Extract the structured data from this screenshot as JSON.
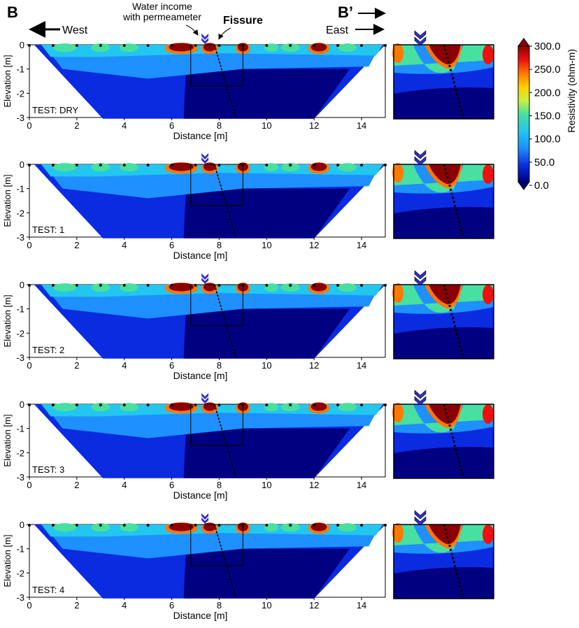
{
  "figure": {
    "section_start": "B",
    "section_end": "B’",
    "west_label": "West",
    "east_label": "East",
    "water_label_line1": "Water income",
    "water_label_line2": "with permeameter",
    "fissure_label": "Fissure"
  },
  "chart_data": {
    "type": "heatmap",
    "xlabel": "Distance [m]",
    "ylabel": "Elevation [m]",
    "xlim": [
      0,
      15
    ],
    "ylim": [
      -3,
      0
    ],
    "xticks": [
      "0",
      "2",
      "4",
      "6",
      "8",
      "10",
      "12",
      "14"
    ],
    "yticks": [
      "0",
      "-1",
      "-2",
      "-3"
    ],
    "panels": [
      {
        "test": "TEST: DRY"
      },
      {
        "test": "TEST: 1"
      },
      {
        "test": "TEST: 2"
      },
      {
        "test": "TEST: 3"
      },
      {
        "test": "TEST: 4"
      }
    ],
    "colorbar": {
      "label": "Resistivity (ohm-m)",
      "ticks": [
        "300.0",
        "250.0",
        "200.0",
        "150.0",
        "100.0",
        "50.0",
        "0.0"
      ],
      "colors": [
        "#000080",
        "#0a2be0",
        "#1e90ff",
        "#22c6ee",
        "#48e0a0",
        "#c8f040",
        "#ffd000",
        "#ff7800",
        "#ee1010",
        "#8b0000"
      ]
    },
    "fissure_line": {
      "x_top": 7.8,
      "x_bottom": 8.7
    },
    "zoom_box": {
      "x": [
        6.8,
        9.0
      ],
      "y": [
        -1.7,
        0
      ]
    }
  }
}
